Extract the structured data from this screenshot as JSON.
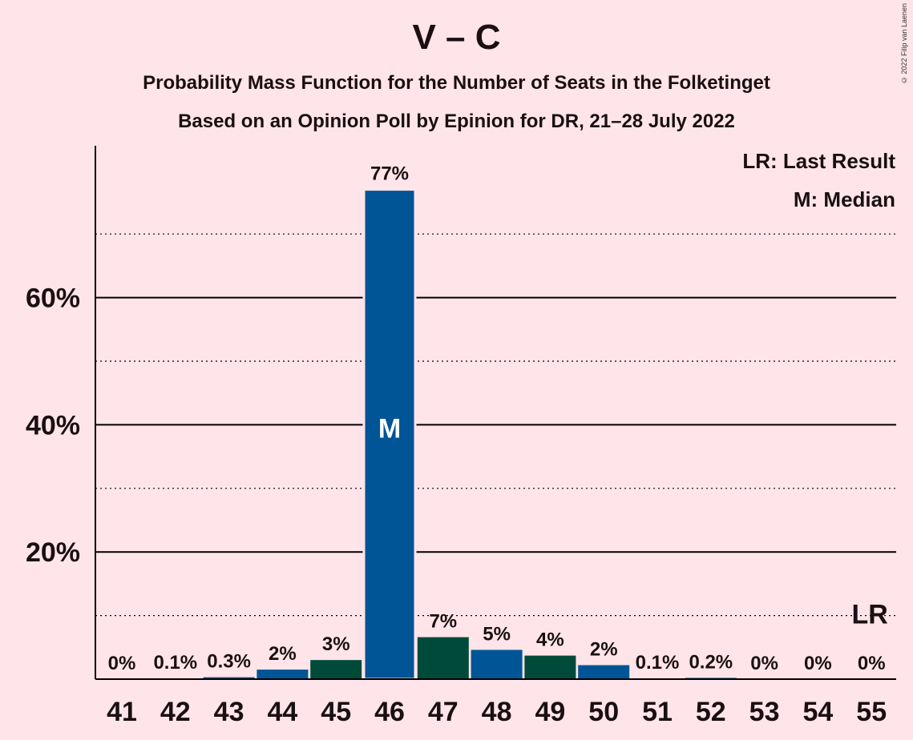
{
  "header": {
    "title": "V – C",
    "subtitle1": "Probability Mass Function for the Number of Seats in the Folketinget",
    "subtitle2": "Based on an Opinion Poll by Epinion for DR, 21–28 July 2022",
    "copyright": "© 2022 Filip van Laenen"
  },
  "legend": {
    "last_result": "LR: Last Result",
    "median": "M: Median"
  },
  "colors": {
    "background": "#FFE5E9",
    "blue": "#005596",
    "green": "#004A3A",
    "text": "#1a0f12"
  },
  "chart_data": {
    "type": "bar",
    "categories": [
      "41",
      "42",
      "43",
      "44",
      "45",
      "46",
      "47",
      "48",
      "49",
      "50",
      "51",
      "52",
      "53",
      "54",
      "55"
    ],
    "values": [
      0,
      0.1,
      0.3,
      1.5,
      3,
      77,
      6.6,
      4.6,
      3.7,
      2.2,
      0.1,
      0.2,
      0,
      0,
      0
    ],
    "labels": [
      "0%",
      "0.1%",
      "0.3%",
      "2%",
      "3%",
      "77%",
      "7%",
      "5%",
      "4%",
      "2%",
      "0.1%",
      "0.2%",
      "0%",
      "0%",
      "0%"
    ],
    "bar_colors": [
      "blue",
      "green",
      "blue",
      "blue",
      "green",
      "blue",
      "green",
      "blue",
      "green",
      "blue",
      "green",
      "blue",
      "green",
      "blue",
      "green"
    ],
    "ylim": [
      0,
      80
    ],
    "y_ticks": [
      20,
      40,
      60
    ],
    "y_tick_labels": [
      "20%",
      "40%",
      "60%"
    ],
    "minor_gridlines": [
      10,
      30,
      50,
      70
    ],
    "median_category": "46",
    "median_marker": "M",
    "last_result_category": "55",
    "last_result_marker": "LR",
    "xlabel": "",
    "ylabel": "",
    "legend_position": "top-right"
  }
}
